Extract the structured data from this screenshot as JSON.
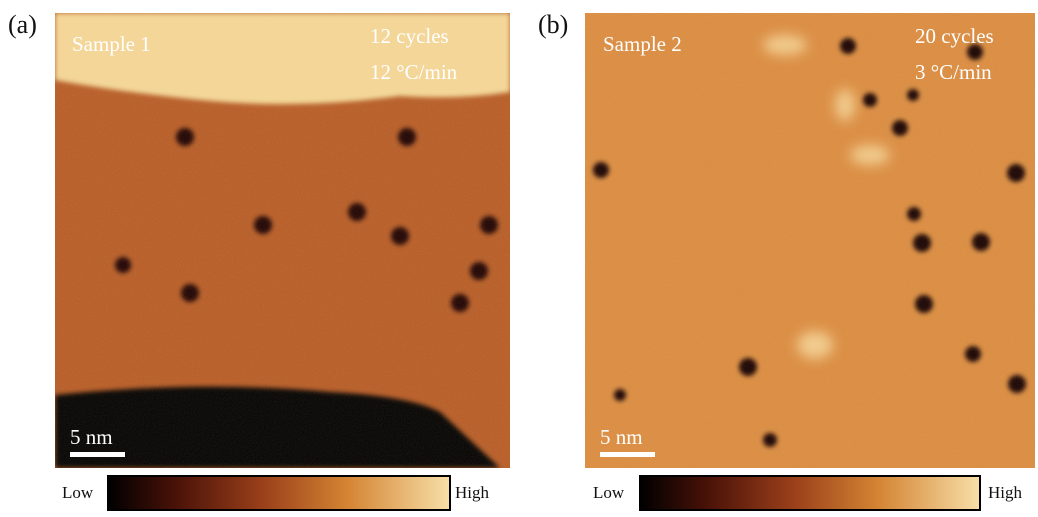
{
  "panels": [
    {
      "label": "(a)",
      "sample": "Sample 1",
      "cycles": "12 cycles",
      "rate": "12 °C/min",
      "scale_bar": "5 nm",
      "colorbar": {
        "low": "Low",
        "high": "High"
      }
    },
    {
      "label": "(b)",
      "sample": "Sample 2",
      "cycles": "20 cycles",
      "rate": "3 °C/min",
      "scale_bar": "5 nm",
      "colorbar": {
        "low": "Low",
        "high": "High"
      }
    }
  ]
}
